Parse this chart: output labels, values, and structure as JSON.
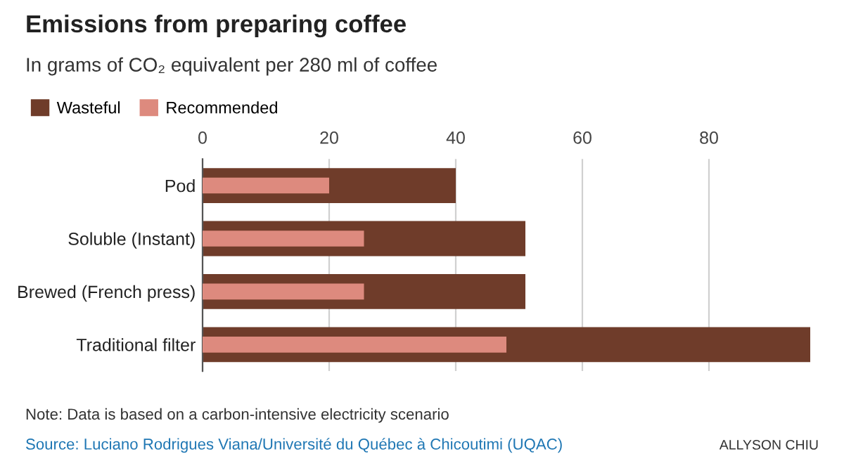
{
  "chart_data": {
    "type": "bar",
    "orientation": "horizontal",
    "title": "Emissions from preparing coffee",
    "subtitle": "In grams of CO₂ equivalent per 280 ml of coffee",
    "categories": [
      "Pod",
      "Soluble (Instant)",
      "Brewed (French press)",
      "Traditional filter"
    ],
    "series": [
      {
        "name": "Wasteful",
        "color": "#6f3c2a",
        "values": [
          40,
          51,
          51,
          96
        ]
      },
      {
        "name": "Recommended",
        "color": "#dd8a7e",
        "values": [
          20,
          25.5,
          25.5,
          48
        ]
      }
    ],
    "xlim": [
      0,
      96
    ],
    "xticks": [
      0,
      20,
      40,
      60,
      80
    ],
    "grid": "x",
    "legend": "top left",
    "annotations": [
      "Note: Data is based on a carbon-intensive electricity scenario",
      "Source: Luciano Rodrigues Viana/Université du Québec à Chicoutimi (UQAC)",
      "ALLYSON CHIU"
    ]
  }
}
